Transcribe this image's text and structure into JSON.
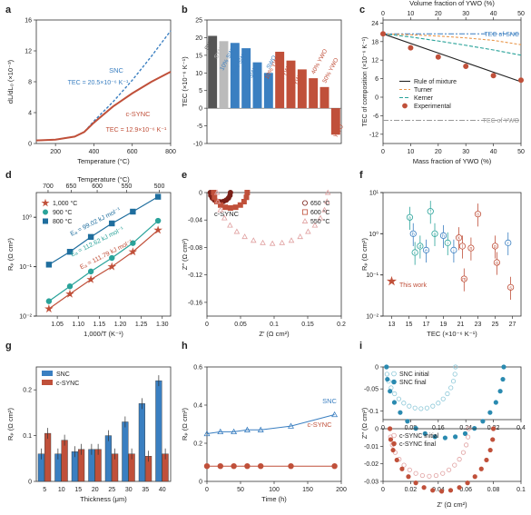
{
  "colors": {
    "blue": "#3a7fc1",
    "red": "#c0503a",
    "teal": "#2aa39a",
    "steel": "#1f6e9e",
    "grey": "#999999",
    "orange": "#e9974b",
    "darkred": "#7a2018",
    "pink": "#e0a0a0",
    "lightgrey": "#c8c8c8"
  },
  "panels": {
    "a": "a",
    "b": "b",
    "c": "c",
    "d": "d",
    "e": "e",
    "f": "f",
    "g": "g",
    "h": "h",
    "i": "i"
  },
  "chart_data": [
    {
      "panel": "a",
      "type": "line",
      "xlabel": "Temperature (°C)",
      "ylabel": "dL/dL₀ (×10⁻³)",
      "xlim": [
        100,
        800
      ],
      "ylim": [
        0,
        16
      ],
      "xticks": [
        200,
        400,
        600,
        800
      ],
      "yticks": [
        0,
        4,
        8,
        12,
        16
      ],
      "series": [
        {
          "name": "SNC",
          "tec_label": "TEC = 20.5×10⁻⁶ K⁻¹",
          "color": "#3a7fc1",
          "x": [
            100,
            200,
            300,
            350,
            400,
            500,
            600,
            700,
            800
          ],
          "y": [
            0.4,
            0.5,
            0.9,
            1.5,
            2.9,
            5.4,
            8.2,
            11.3,
            14.6
          ]
        },
        {
          "name": "c-SYNC",
          "tec_label": "TEC = 12.9×10⁻⁶ K⁻¹",
          "color": "#c0503a",
          "x": [
            100,
            200,
            300,
            350,
            400,
            500,
            600,
            700,
            800
          ],
          "y": [
            0.4,
            0.5,
            0.9,
            1.5,
            2.7,
            4.8,
            6.5,
            8.0,
            9.3
          ]
        }
      ]
    },
    {
      "panel": "b",
      "type": "bar",
      "ylabel": "TEC (×10⁻⁶ K⁻¹)",
      "ylim": [
        -10,
        25
      ],
      "yticks": [
        -10,
        -5,
        0,
        5,
        10,
        15,
        20,
        25
      ],
      "categories": [
        "SNC",
        "SYNC",
        "10% SWO",
        "30% SWO",
        "50% SWO",
        "SWO",
        "10% YWO",
        "20% YWO",
        "30% YWO",
        "40% YWO",
        "50% YWO",
        "YWO"
      ],
      "values": [
        20.5,
        19.0,
        18.5,
        17.0,
        13.0,
        10.0,
        16.0,
        13.5,
        11.0,
        8.5,
        6.0,
        -7.5
      ],
      "bar_colors": [
        "#555555",
        "#bbbbbb",
        "#3a7fc1",
        "#3a7fc1",
        "#3a7fc1",
        "#3a7fc1",
        "#c0503a",
        "#c0503a",
        "#c0503a",
        "#c0503a",
        "#c0503a",
        "#c0503a"
      ]
    },
    {
      "panel": "c",
      "type": "line",
      "xlabel": "Mass fraction of YWO (%)",
      "x2label": "Volume fraction of YWO (%)",
      "ylabel": "TEC of composition (×10⁻⁶ K⁻¹)",
      "xlim": [
        0,
        50
      ],
      "ylim": [
        -15,
        25
      ],
      "xticks": [
        0,
        10,
        20,
        30,
        40,
        50
      ],
      "x2ticks": [
        0,
        10,
        20,
        30,
        40,
        50
      ],
      "yticks": [
        -12,
        -6,
        0,
        6,
        12,
        18,
        24
      ],
      "ref_lines": [
        {
          "label": "TEC of SNC",
          "y": 20.5,
          "color": "#3a7fc1"
        },
        {
          "label": "TEC of YWO",
          "y": -7.5,
          "color": "#999999"
        }
      ],
      "series": [
        {
          "name": "Rule of mixture",
          "color": "#222222",
          "x": [
            0,
            50
          ],
          "y": [
            20.5,
            5.0
          ]
        },
        {
          "name": "Turner",
          "color": "#e9974b",
          "x": [
            0,
            10,
            20,
            30,
            40,
            50
          ],
          "y": [
            20.5,
            20.2,
            19.8,
            19.2,
            18.4,
            17.0
          ]
        },
        {
          "name": "Kerner",
          "color": "#2aa39a",
          "x": [
            0,
            10,
            20,
            30,
            40,
            50
          ],
          "y": [
            20.5,
            19.5,
            18.2,
            16.8,
            15.3,
            13.6
          ]
        },
        {
          "name": "Experimental",
          "color": "#c0503a",
          "x": [
            0,
            10,
            20,
            30,
            40,
            50
          ],
          "y": [
            20.5,
            16.0,
            13.0,
            10.0,
            7.0,
            5.5
          ]
        }
      ]
    },
    {
      "panel": "d",
      "type": "scatter",
      "xlabel": "1,000/T (K⁻¹)",
      "x2label": "Temperature (°C)",
      "ylabel": "Rₚ (Ω cm²)",
      "xlim": [
        1.0,
        1.32
      ],
      "xticks": [
        1.05,
        1.1,
        1.15,
        1.2,
        1.25,
        1.3
      ],
      "x2ticks": [
        700,
        650,
        600,
        550,
        500
      ],
      "yticks": [
        "10⁻²",
        "10⁻¹",
        "10⁰"
      ],
      "ylim": [
        0.01,
        3
      ],
      "scale": "log",
      "series": [
        {
          "name": "1,000 °C",
          "marker": "star",
          "color": "#c0503a",
          "ea": "Eₐ = 111.79 kJ mol⁻¹",
          "x": [
            1.03,
            1.08,
            1.13,
            1.18,
            1.23,
            1.29
          ],
          "y": [
            0.014,
            0.028,
            0.055,
            0.1,
            0.2,
            0.55
          ]
        },
        {
          "name": "900 °C",
          "marker": "circle",
          "color": "#2aa39a",
          "ea": "Eₐ = 112.62 kJ mol⁻¹",
          "x": [
            1.03,
            1.08,
            1.13,
            1.18,
            1.23,
            1.29
          ],
          "y": [
            0.02,
            0.04,
            0.08,
            0.15,
            0.3,
            0.85
          ]
        },
        {
          "name": "800 °C",
          "marker": "square",
          "color": "#1f6e9e",
          "ea": "Eₐ = 99.02 kJ mol⁻¹",
          "x": [
            1.03,
            1.08,
            1.13,
            1.18,
            1.23,
            1.29
          ],
          "y": [
            0.11,
            0.2,
            0.4,
            0.75,
            1.3,
            2.6
          ]
        }
      ]
    },
    {
      "panel": "e",
      "type": "scatter",
      "title": "c-SYNC",
      "xlabel": "Z′ (Ω cm²)",
      "ylabel": "Z″ (Ω cm²)",
      "xlim": [
        0,
        0.2
      ],
      "ylim": [
        -0.18,
        0
      ],
      "xticks": [
        0,
        0.05,
        0.1,
        0.15,
        0.2
      ],
      "yticks": [
        -0.16,
        -0.12,
        -0.08,
        -0.04,
        0
      ],
      "series": [
        {
          "name": "650 °C",
          "marker": "circle",
          "color": "#7a2018",
          "r0": 0.005,
          "r1": 0.035
        },
        {
          "name": "600 °C",
          "marker": "square",
          "color": "#c0503a",
          "r0": 0.01,
          "r1": 0.06
        },
        {
          "name": "550 °C",
          "marker": "triangle",
          "color": "#e0a0a0",
          "r0": 0.015,
          "r1": 0.18
        }
      ]
    },
    {
      "panel": "f",
      "type": "scatter",
      "xlabel": "TEC (×10⁻⁶ K⁻¹)",
      "ylabel": "Rₚ (Ω cm²)",
      "xlim": [
        12,
        28
      ],
      "xticks": [
        13,
        15,
        17,
        19,
        21,
        23,
        25,
        27
      ],
      "yticks": [
        "10⁻²",
        "10⁻¹",
        "10⁰",
        "10¹"
      ],
      "scale": "log",
      "legend": "This work",
      "points": [
        {
          "x": 13.0,
          "y": 0.07,
          "color": "#c0503a",
          "marker": "star",
          "label": ""
        },
        {
          "x": 15.1,
          "y": 2.5,
          "color": "#2aa39a",
          "label": "a"
        },
        {
          "x": 15.5,
          "y": 1.0,
          "color": "#3a7fc1",
          "label": "b"
        },
        {
          "x": 15.7,
          "y": 0.35,
          "color": "#2aa39a",
          "label": "c"
        },
        {
          "x": 16.3,
          "y": 0.5,
          "color": "#2aa39a",
          "label": "d"
        },
        {
          "x": 17.0,
          "y": 0.4,
          "color": "#3a7fc1",
          "label": "e"
        },
        {
          "x": 17.5,
          "y": 3.5,
          "color": "#2aa39a",
          "label": "f"
        },
        {
          "x": 18.0,
          "y": 1.0,
          "color": "#2aa39a",
          "label": "g"
        },
        {
          "x": 19.0,
          "y": 0.9,
          "color": "#3a7fc1",
          "label": "h"
        },
        {
          "x": 19.5,
          "y": 0.6,
          "color": "#2aa39a",
          "label": "i"
        },
        {
          "x": 20.2,
          "y": 0.4,
          "color": "#3a7fc1",
          "label": "j"
        },
        {
          "x": 20.8,
          "y": 0.8,
          "color": "#c0503a",
          "label": "k"
        },
        {
          "x": 21.2,
          "y": 0.5,
          "color": "#c0503a",
          "label": "l"
        },
        {
          "x": 21.4,
          "y": 0.08,
          "color": "#c0503a",
          "label": "m"
        },
        {
          "x": 22.2,
          "y": 0.45,
          "color": "#c0503a",
          "label": "n"
        },
        {
          "x": 23.0,
          "y": 3.0,
          "color": "#c0503a",
          "label": "o"
        },
        {
          "x": 25.0,
          "y": 0.5,
          "color": "#c0503a",
          "label": "p"
        },
        {
          "x": 25.2,
          "y": 0.2,
          "color": "#c0503a",
          "label": "q"
        },
        {
          "x": 26.5,
          "y": 0.6,
          "color": "#3a7fc1",
          "label": "r"
        },
        {
          "x": 26.8,
          "y": 0.05,
          "color": "#c0503a",
          "label": "s"
        }
      ]
    },
    {
      "panel": "g",
      "type": "bar",
      "xlabel": "Thickness (μm)",
      "ylabel": "Rₚ (Ω cm²)",
      "categories": [
        "5",
        "10",
        "15",
        "20",
        "25",
        "30",
        "35",
        "40"
      ],
      "ylim": [
        0,
        0.25
      ],
      "yticks": [
        0,
        0.1,
        0.2
      ],
      "series": [
        {
          "name": "SNC",
          "color": "#3a7fc1",
          "values": [
            0.06,
            0.06,
            0.065,
            0.07,
            0.1,
            0.13,
            0.17,
            0.22
          ]
        },
        {
          "name": "c-SYNC",
          "color": "#c0503a",
          "values": [
            0.105,
            0.09,
            0.07,
            0.07,
            0.06,
            0.06,
            0.055,
            0.06
          ]
        }
      ]
    },
    {
      "panel": "h",
      "type": "line",
      "xlabel": "Time (h)",
      "ylabel": "Rₚ (Ω cm²)",
      "xlim": [
        0,
        200
      ],
      "xticks": [
        0,
        50,
        100,
        150,
        200
      ],
      "ylim": [
        0,
        0.6
      ],
      "yticks": [
        0,
        0.2,
        0.4,
        0.6
      ],
      "series": [
        {
          "name": "SNC",
          "marker": "triangle",
          "color": "#3a7fc1",
          "x": [
            0,
            20,
            40,
            60,
            80,
            125,
            190
          ],
          "y": [
            0.25,
            0.26,
            0.26,
            0.27,
            0.27,
            0.29,
            0.35
          ]
        },
        {
          "name": "c-SYNC",
          "marker": "circle",
          "color": "#c0503a",
          "x": [
            0,
            20,
            40,
            60,
            80,
            125,
            190
          ],
          "y": [
            0.08,
            0.08,
            0.08,
            0.08,
            0.08,
            0.08,
            0.08
          ]
        }
      ]
    },
    {
      "panel": "i",
      "type": "scatter",
      "xlabel": "Z′ (Ω cm²)",
      "ylabel": "Z″ (Ω cm²)",
      "subplots": [
        {
          "xlim": [
            0,
            0.4
          ],
          "xticks": [
            0,
            0.08,
            0.16,
            0.24,
            0.32,
            0.4
          ],
          "ylim": [
            -0.12,
            0
          ],
          "yticks": [
            -0.1,
            -0.05,
            0
          ],
          "series": [
            {
              "name": "SNC initial",
              "color": "#8cc8d8",
              "r0": 0.01,
              "r1": 0.21
            },
            {
              "name": "SNC final",
              "color": "#2a8ab0",
              "r0": 0.01,
              "r1": 0.35
            }
          ]
        },
        {
          "xlim": [
            0,
            0.1
          ],
          "xticks": [
            0,
            0.02,
            0.04,
            0.06,
            0.08,
            0.1
          ],
          "ylim": [
            -0.03,
            0
          ],
          "yticks": [
            -0.03,
            -0.02,
            -0.01,
            0
          ],
          "series": [
            {
              "name": "c-SYNC initial",
              "color": "#e0a0a0",
              "r0": 0.005,
              "r1": 0.062
            },
            {
              "name": "c-SYNC final",
              "color": "#c0503a",
              "r0": 0.005,
              "r1": 0.08
            }
          ]
        }
      ]
    }
  ]
}
